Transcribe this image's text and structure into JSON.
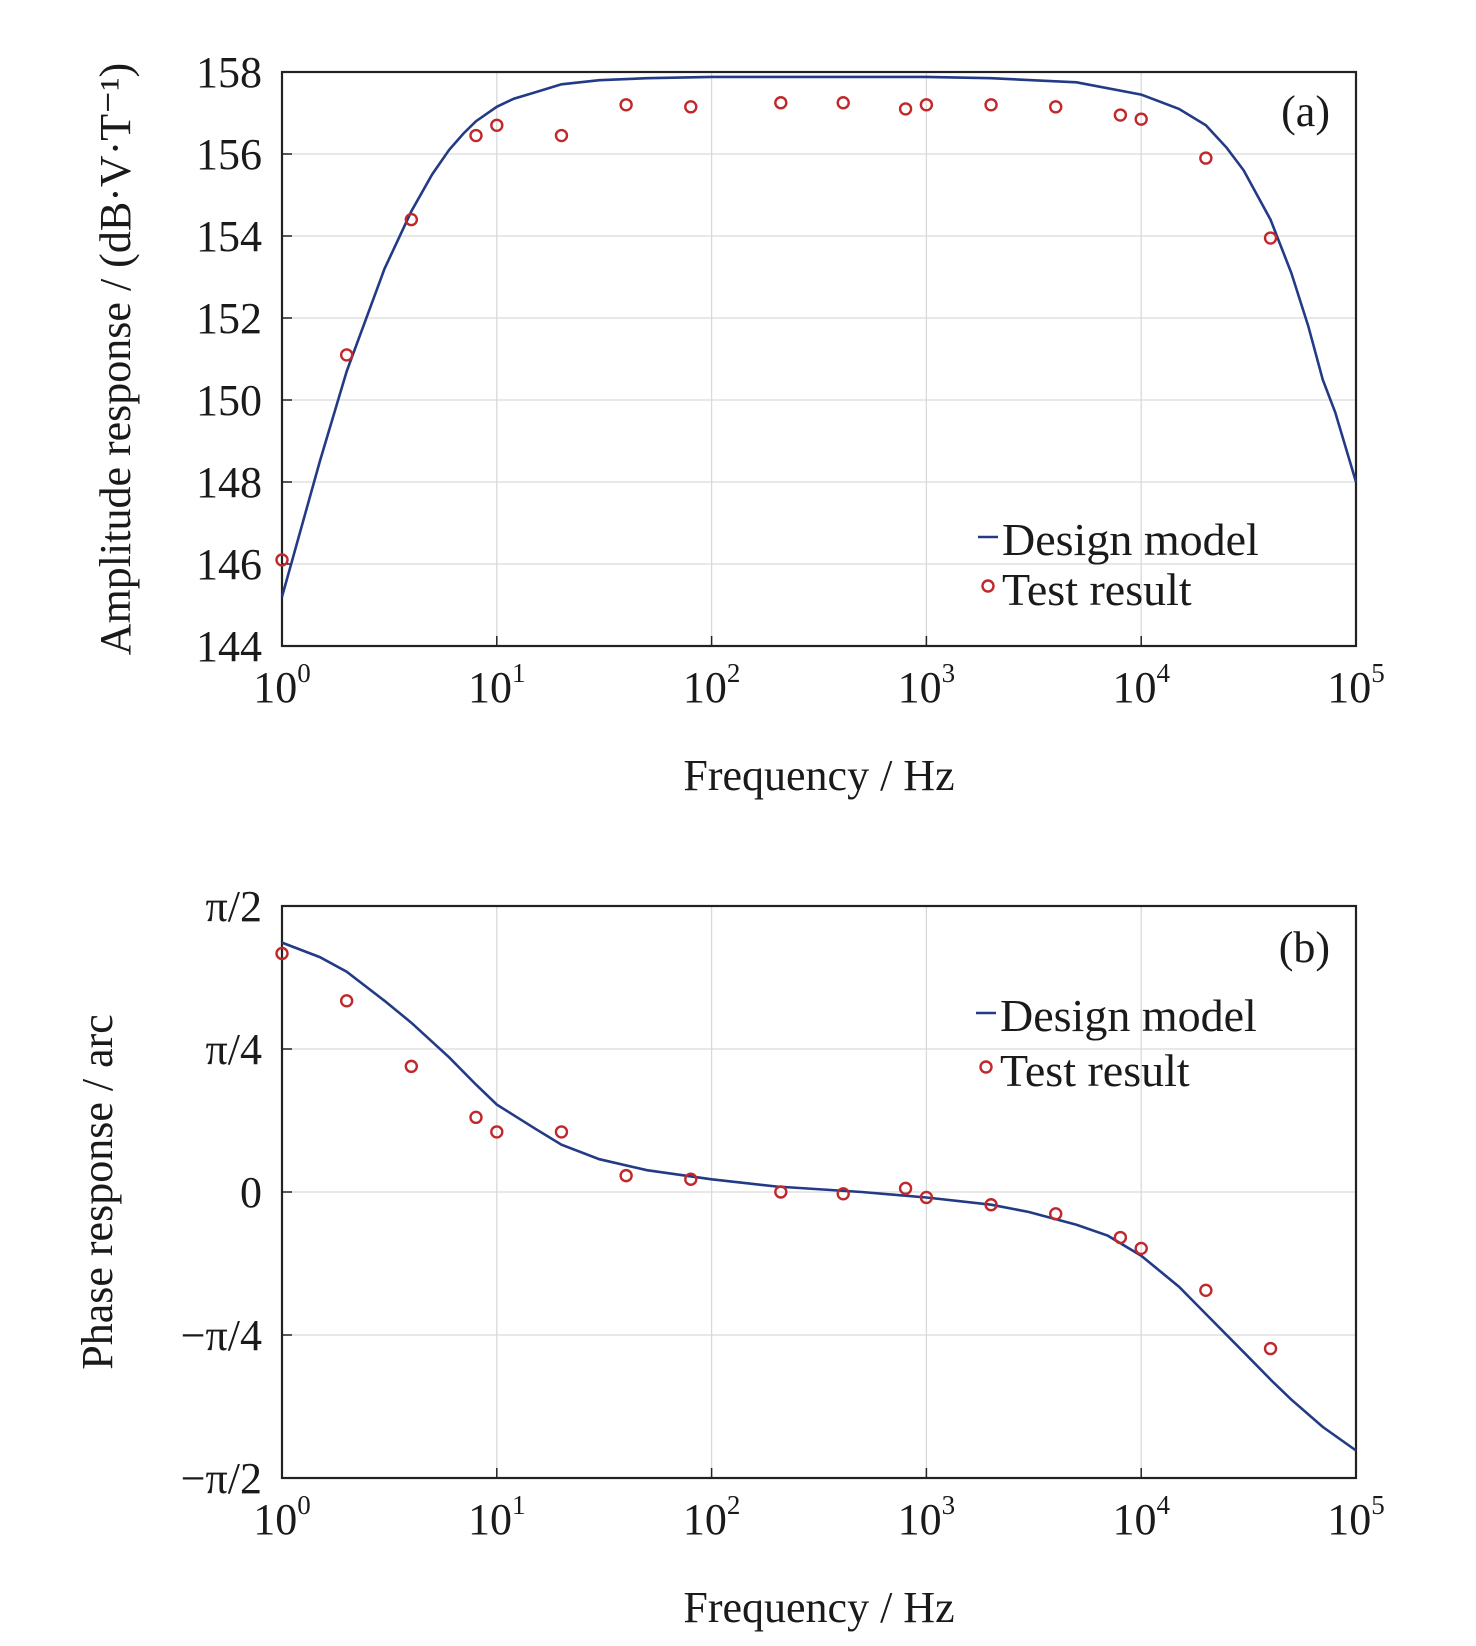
{
  "colors": {
    "model": "#233a86",
    "test": "#c0282b"
  },
  "chart_data": [
    {
      "type": "line",
      "panel_label": "(a)",
      "xlabel": "Frequency / Hz",
      "ylabel": "Amplitude response / (dB·V·T⁻¹)",
      "xscale": "log",
      "xlim": [
        1,
        100000
      ],
      "ylim": [
        144,
        158
      ],
      "x_ticks": [
        {
          "base": "10",
          "exp": "0"
        },
        {
          "base": "10",
          "exp": "1"
        },
        {
          "base": "10",
          "exp": "2"
        },
        {
          "base": "10",
          "exp": "3"
        },
        {
          "base": "10",
          "exp": "4"
        },
        {
          "base": "10",
          "exp": "5"
        }
      ],
      "y_ticks": [
        {
          "value": 144,
          "label": "144"
        },
        {
          "value": 146,
          "label": "146"
        },
        {
          "value": 148,
          "label": "148"
        },
        {
          "value": 150,
          "label": "150"
        },
        {
          "value": 152,
          "label": "152"
        },
        {
          "value": 154,
          "label": "154"
        },
        {
          "value": 156,
          "label": "156"
        },
        {
          "value": 158,
          "label": "158"
        }
      ],
      "grid": true,
      "legend_position": "lower-right",
      "series": [
        {
          "name": "Design model",
          "kind": "line",
          "x": [
            1,
            1.5,
            2,
            3,
            4,
            5,
            6,
            7,
            8,
            10,
            12,
            15,
            20,
            30,
            50,
            100,
            200,
            500,
            1000,
            2000,
            5000,
            10000,
            15000,
            20000,
            25000,
            30000,
            40000,
            50000,
            60000,
            70000,
            80000,
            100000
          ],
          "y": [
            145.2,
            148.5,
            150.7,
            153.2,
            154.6,
            155.5,
            156.1,
            156.5,
            156.8,
            157.15,
            157.35,
            157.5,
            157.7,
            157.8,
            157.85,
            157.88,
            157.88,
            157.88,
            157.88,
            157.85,
            157.75,
            157.45,
            157.1,
            156.7,
            156.15,
            155.6,
            154.4,
            153.1,
            151.8,
            150.5,
            149.7,
            148.0
          ]
        },
        {
          "name": "Test result",
          "kind": "scatter",
          "x": [
            1,
            2,
            4,
            8,
            10,
            20,
            40,
            80,
            210,
            410,
            800,
            1000,
            2000,
            4000,
            8000,
            10000,
            20000,
            40000
          ],
          "y": [
            146.1,
            151.1,
            154.4,
            156.45,
            156.7,
            156.45,
            157.2,
            157.15,
            157.25,
            157.25,
            157.1,
            157.2,
            157.2,
            157.15,
            156.95,
            156.85,
            155.9,
            153.95
          ]
        }
      ]
    },
    {
      "type": "line",
      "panel_label": "(b)",
      "xlabel": "Frequency / Hz",
      "ylabel": "Phase response / arc",
      "xscale": "log",
      "xlim": [
        1,
        100000
      ],
      "ylim": [
        -1.5708,
        1.5708
      ],
      "x_ticks": [
        {
          "base": "10",
          "exp": "0"
        },
        {
          "base": "10",
          "exp": "1"
        },
        {
          "base": "10",
          "exp": "2"
        },
        {
          "base": "10",
          "exp": "3"
        },
        {
          "base": "10",
          "exp": "4"
        },
        {
          "base": "10",
          "exp": "5"
        }
      ],
      "y_ticks": [
        {
          "value": 1.5708,
          "label": "π/2"
        },
        {
          "value": 0.7854,
          "label": "π/4"
        },
        {
          "value": 0,
          "label": "0"
        },
        {
          "value": -0.7854,
          "label": "−π/4"
        },
        {
          "value": -1.5708,
          "label": "−π/2"
        }
      ],
      "grid": true,
      "legend_position": "upper-right",
      "series": [
        {
          "name": "Design model",
          "kind": "line",
          "x": [
            1,
            1.5,
            2,
            3,
            4,
            6,
            8,
            10,
            15,
            20,
            30,
            50,
            100,
            200,
            500,
            1000,
            2000,
            3000,
            5000,
            7000,
            10000,
            15000,
            20000,
            30000,
            40000,
            50000,
            70000,
            100000
          ],
          "y": [
            1.37,
            1.29,
            1.21,
            1.05,
            0.93,
            0.74,
            0.59,
            0.48,
            0.35,
            0.26,
            0.18,
            0.12,
            0.07,
            0.03,
            0.0,
            -0.03,
            -0.07,
            -0.11,
            -0.18,
            -0.24,
            -0.35,
            -0.52,
            -0.67,
            -0.88,
            -1.03,
            -1.14,
            -1.29,
            -1.42
          ]
        },
        {
          "name": "Test result",
          "kind": "scatter",
          "x": [
            1,
            2,
            4,
            8,
            10,
            20,
            40,
            80,
            210,
            410,
            800,
            1000,
            2000,
            4000,
            8000,
            10000,
            20000,
            40000
          ],
          "y": [
            1.31,
            1.05,
            0.69,
            0.41,
            0.33,
            0.33,
            0.09,
            0.07,
            0.0,
            -0.01,
            0.02,
            -0.03,
            -0.07,
            -0.12,
            -0.25,
            -0.31,
            -0.54,
            -0.86
          ]
        }
      ]
    }
  ]
}
